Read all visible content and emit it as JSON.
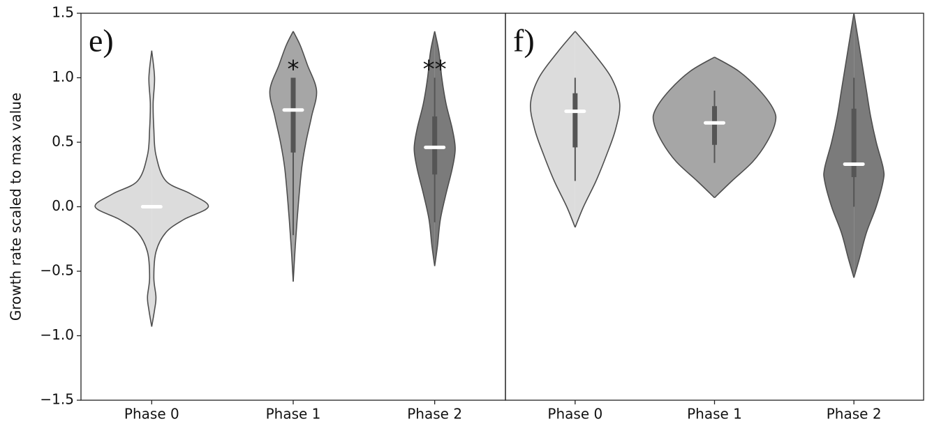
{
  "chart_data": [
    {
      "type": "violin",
      "panel_label": "e)",
      "ylabel": "Growth rate scaled to max value",
      "categories": [
        "Phase 0",
        "Phase 1",
        "Phase 2"
      ],
      "colors": [
        "#dcdcdc",
        "#a6a6a6",
        "#7b7b7b"
      ],
      "significance": [
        null,
        "*",
        "**"
      ],
      "ylim": [
        -1.5,
        1.5
      ],
      "yticks": [
        {
          "value": -1.5,
          "label": "−1.5"
        },
        {
          "value": -1.0,
          "label": "−1.0"
        },
        {
          "value": -0.5,
          "label": "−0.5"
        },
        {
          "value": 0,
          "label": "0.0"
        },
        {
          "value": 0.5,
          "label": "0.5"
        },
        {
          "value": 1.0,
          "label": "1.0"
        },
        {
          "value": 1.5,
          "label": "1.5"
        }
      ],
      "violins": [
        {
          "median": 0,
          "q1": -0.01,
          "q3": 0.01,
          "whisker_low": -0.01,
          "whisker_high": 0.01,
          "density_y": [
            -0.93,
            -0.8,
            -0.7,
            -0.55,
            -0.35,
            -0.2,
            -0.1,
            0,
            0.1,
            0.2,
            0.4,
            0.6,
            0.8,
            1.0,
            1.21
          ],
          "density": [
            0,
            0.04,
            0.06,
            0.03,
            0.06,
            0.2,
            0.45,
            0.8,
            0.55,
            0.2,
            0.06,
            0.03,
            0.02,
            0.04,
            0
          ]
        },
        {
          "median": 0.75,
          "q1": 0.42,
          "q3": 1.0,
          "whisker_low": -0.22,
          "whisker_high": 1.0,
          "density_y": [
            -0.58,
            -0.3,
            0,
            0.3,
            0.5,
            0.7,
            0.9,
            1.1,
            1.25,
            1.36
          ],
          "density": [
            0,
            0.03,
            0.07,
            0.12,
            0.18,
            0.26,
            0.33,
            0.2,
            0.1,
            0
          ]
        },
        {
          "median": 0.46,
          "q1": 0.25,
          "q3": 0.7,
          "whisker_low": -0.12,
          "whisker_high": 1.0,
          "density_y": [
            -0.46,
            -0.3,
            -0.1,
            0.1,
            0.3,
            0.45,
            0.6,
            0.8,
            1.0,
            1.2,
            1.36
          ],
          "density": [
            0,
            0.04,
            0.08,
            0.16,
            0.25,
            0.29,
            0.25,
            0.16,
            0.1,
            0.06,
            0
          ]
        }
      ]
    },
    {
      "type": "violin",
      "panel_label": "f)",
      "categories": [
        "Phase 0",
        "Phase 1",
        "Phase 2"
      ],
      "colors": [
        "#dcdcdc",
        "#a6a6a6",
        "#7b7b7b"
      ],
      "ylim": [
        -1.5,
        1.5
      ],
      "violins": [
        {
          "median": 0.74,
          "q1": 0.46,
          "q3": 0.88,
          "whisker_low": 0.2,
          "whisker_high": 1.0,
          "density_y": [
            -0.16,
            0,
            0.2,
            0.4,
            0.6,
            0.8,
            1.0,
            1.2,
            1.36
          ],
          "density": [
            0,
            0.12,
            0.3,
            0.45,
            0.58,
            0.64,
            0.52,
            0.25,
            0
          ]
        },
        {
          "median": 0.65,
          "q1": 0.48,
          "q3": 0.78,
          "whisker_low": 0.34,
          "whisker_high": 0.9,
          "density_y": [
            0.07,
            0.2,
            0.35,
            0.5,
            0.65,
            0.75,
            0.9,
            1.05,
            1.16
          ],
          "density": [
            0,
            0.25,
            0.55,
            0.75,
            0.87,
            0.85,
            0.65,
            0.35,
            0
          ]
        },
        {
          "median": 0.33,
          "q1": 0.23,
          "q3": 0.76,
          "whisker_low": 0.0,
          "whisker_high": 1.0,
          "density_y": [
            -0.55,
            -0.4,
            -0.2,
            0,
            0.2,
            0.3,
            0.5,
            0.7,
            0.9,
            1.1,
            1.3,
            1.5
          ],
          "density": [
            0,
            0.08,
            0.18,
            0.32,
            0.42,
            0.42,
            0.32,
            0.24,
            0.18,
            0.12,
            0.06,
            0
          ]
        }
      ]
    }
  ]
}
